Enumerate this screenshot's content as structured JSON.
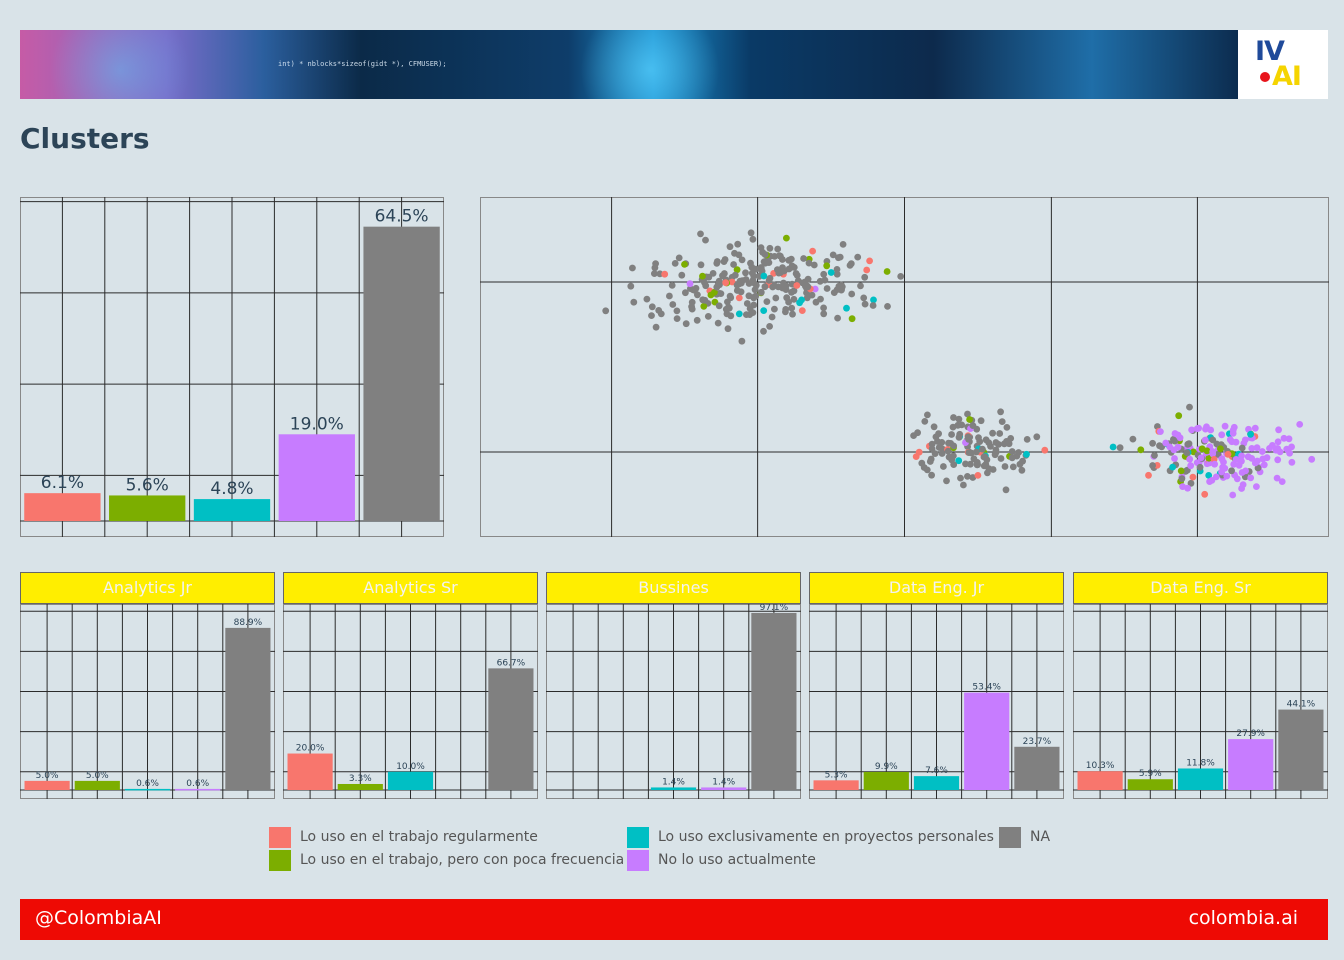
{
  "header": {
    "banner_code": "int) * nblocks*sizeof(gidt *), CFMUSER);",
    "logo_top": "IV",
    "logo_bottom": "AI"
  },
  "page_title": "Clusters",
  "colors": {
    "Lo uso en el trabajo regularmente": "#f8766d",
    "Lo uso en el trabajo, pero con poca frecuencia": "#7cae00",
    "Lo uso exclusivamente en proyectos personales": "#00bfc4",
    "No lo uso actualmente": "#c77cff",
    "NA": "#808080"
  },
  "legend": [
    {
      "label": "Lo uso en el trabajo regularmente",
      "color": "#f8766d"
    },
    {
      "label": "Lo uso en el trabajo, pero con poca frecuencia",
      "color": "#7cae00"
    },
    {
      "label": "Lo uso exclusivamente en proyectos personales",
      "color": "#00bfc4"
    },
    {
      "label": "No lo uso actualmente",
      "color": "#c77cff"
    },
    {
      "label": "NA",
      "color": "#808080"
    }
  ],
  "chart_data": [
    {
      "id": "overall",
      "type": "bar",
      "categories": [
        "Lo uso en el trabajo regularmente",
        "Lo uso en el trabajo, pero con poca frecuencia",
        "Lo uso exclusivamente en proyectos personales",
        "No lo uso actualmente",
        "NA"
      ],
      "values": [
        6.1,
        5.6,
        4.8,
        19.0,
        64.5
      ],
      "labels": [
        "6.1%",
        "5.6%",
        "4.8%",
        "19.0%",
        "64.5%"
      ],
      "ylim": [
        0,
        71
      ],
      "grid": true
    },
    {
      "id": "clusters-scatter",
      "type": "scatter",
      "xlim": [
        0,
        1
      ],
      "ylim": [
        0,
        1
      ],
      "grid": true,
      "clusters": [
        {
          "cx": 0.33,
          "cy": 0.74,
          "rx": 0.22,
          "ry": 0.2,
          "n": 260,
          "shares": {
            "Lo uso en el trabajo regularmente": 0.07,
            "Lo uso en el trabajo, pero con poca frecuencia": 0.06,
            "Lo uso exclusivamente en proyectos personales": 0.03,
            "No lo uso actualmente": 0.02,
            "NA": 0.82
          }
        },
        {
          "cx": 0.58,
          "cy": 0.26,
          "rx": 0.12,
          "ry": 0.16,
          "n": 130,
          "shares": {
            "Lo uso en el trabajo regularmente": 0.04,
            "Lo uso en el trabajo, pero con poca frecuencia": 0.03,
            "Lo uso exclusivamente en proyectos personales": 0.03,
            "No lo uso actualmente": 0.03,
            "NA": 0.87
          }
        },
        {
          "cx": 0.84,
          "cy": 0.24,
          "rx": 0.15,
          "ry": 0.17,
          "n": 190,
          "shares": {
            "Lo uso en el trabajo regularmente": 0.06,
            "Lo uso en el trabajo, pero con poca frecuencia": 0.08,
            "Lo uso exclusivamente en proyectos personales": 0.1,
            "No lo uso actualmente": 0.5,
            "NA": 0.26
          }
        }
      ]
    },
    {
      "id": "facet-analytics-jr",
      "title": "Analytics Jr",
      "type": "bar",
      "values": [
        5.0,
        5.0,
        0.6,
        0.6,
        88.9
      ],
      "labels": [
        "5.0%",
        "5.0%",
        "0.6%",
        "0.6%",
        "88.9%"
      ],
      "ylim": [
        0,
        102
      ]
    },
    {
      "id": "facet-analytics-sr",
      "title": "Analytics Sr",
      "type": "bar",
      "values": [
        20.0,
        3.3,
        10.0,
        0,
        66.7
      ],
      "labels": [
        "20.0%",
        "3.3%",
        "10.0%",
        "",
        "66.7%"
      ],
      "ylim": [
        0,
        102
      ]
    },
    {
      "id": "facet-bussines",
      "title": "Bussines",
      "type": "bar",
      "values": [
        0,
        0,
        1.4,
        1.4,
        97.1
      ],
      "labels": [
        "",
        "",
        "1.4%",
        "1.4%",
        "97.1%"
      ],
      "ylim": [
        0,
        102
      ]
    },
    {
      "id": "facet-data-eng-jr",
      "title": "Data Eng. Jr",
      "type": "bar",
      "values": [
        5.3,
        9.9,
        7.6,
        53.4,
        23.7
      ],
      "labels": [
        "5.3%",
        "9.9%",
        "7.6%",
        "53.4%",
        "23.7%"
      ],
      "ylim": [
        0,
        102
      ]
    },
    {
      "id": "facet-data-eng-sr",
      "title": "Data Eng. Sr",
      "type": "bar",
      "values": [
        10.3,
        5.9,
        11.8,
        27.9,
        44.1
      ],
      "labels": [
        "10.3%",
        "5.9%",
        "11.8%",
        "27.9%",
        "44.1%"
      ],
      "ylim": [
        0,
        102
      ]
    }
  ],
  "footer": {
    "left": "@ColombiaAI",
    "right": "colombia.ai"
  }
}
